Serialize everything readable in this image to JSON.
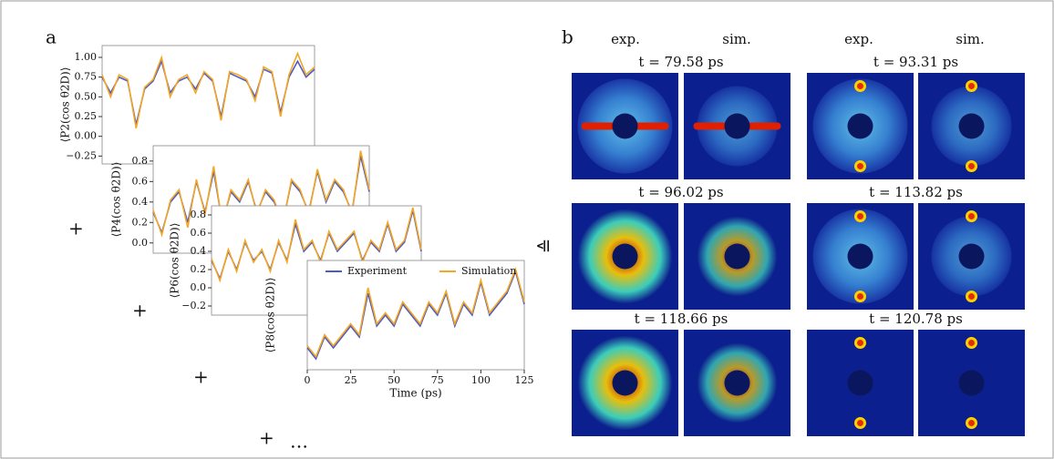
{
  "panel_a": {
    "label": "a",
    "symbols": [
      "+",
      "+",
      "+",
      "+",
      "…"
    ]
  },
  "chart_data": [
    {
      "type": "line",
      "y_label": "⟨P2(cos θ2D)⟩",
      "x": [
        0,
        5,
        10,
        15,
        20,
        25,
        30,
        35,
        40,
        45,
        50,
        55,
        60,
        65,
        70,
        75,
        80,
        85,
        90,
        95,
        100,
        105,
        110,
        115,
        120,
        125
      ],
      "xlim": [
        0,
        125
      ],
      "ylim": [
        -0.35,
        1.15
      ],
      "yticks": [
        {
          "value": -0.25,
          "label": "−0.25"
        },
        {
          "value": 0,
          "label": "0.00"
        },
        {
          "value": 0.25,
          "label": "0.25"
        },
        {
          "value": 0.5,
          "label": "0.50"
        },
        {
          "value": 0.75,
          "label": "0.75"
        },
        {
          "value": 1,
          "label": "1.00"
        }
      ],
      "series": [
        {
          "name": "Experiment",
          "color": "#4b5cc4",
          "values": [
            0.75,
            0.55,
            0.75,
            0.7,
            0.15,
            0.6,
            0.7,
            0.95,
            0.55,
            0.7,
            0.75,
            0.6,
            0.8,
            0.7,
            0.25,
            0.8,
            0.75,
            0.7,
            0.5,
            0.85,
            0.8,
            0.3,
            0.75,
            0.95,
            0.75,
            0.85
          ]
        },
        {
          "name": "Simulation",
          "color": "#f5a623",
          "values": [
            0.78,
            0.5,
            0.78,
            0.72,
            0.1,
            0.62,
            0.72,
            1.0,
            0.5,
            0.72,
            0.78,
            0.55,
            0.82,
            0.72,
            0.2,
            0.82,
            0.78,
            0.72,
            0.45,
            0.88,
            0.82,
            0.25,
            0.78,
            1.05,
            0.78,
            0.88
          ]
        }
      ]
    },
    {
      "type": "line",
      "y_label": "⟨P4(cos θ2D)⟩",
      "x": [
        0,
        5,
        10,
        15,
        20,
        25,
        30,
        35,
        40,
        45,
        50,
        55,
        60,
        65,
        70,
        75,
        80,
        85,
        90,
        95,
        100,
        105,
        110,
        115,
        120,
        125
      ],
      "xlim": [
        0,
        125
      ],
      "ylim": [
        -0.1,
        0.95
      ],
      "yticks": [
        {
          "value": 0,
          "label": "0.0"
        },
        0.2,
        0.4,
        0.6,
        0.8
      ],
      "series": [
        {
          "name": "Experiment",
          "color": "#4b5cc4",
          "values": [
            0.3,
            0.1,
            0.4,
            0.5,
            0.2,
            0.6,
            0.3,
            0.7,
            0.2,
            0.5,
            0.4,
            0.6,
            0.3,
            0.5,
            0.4,
            0.2,
            0.6,
            0.5,
            0.3,
            0.7,
            0.4,
            0.6,
            0.5,
            0.3,
            0.85,
            0.5
          ]
        },
        {
          "name": "Simulation",
          "color": "#f5a623",
          "values": [
            0.32,
            0.08,
            0.42,
            0.52,
            0.15,
            0.62,
            0.28,
            0.75,
            0.18,
            0.52,
            0.42,
            0.62,
            0.28,
            0.52,
            0.42,
            0.18,
            0.62,
            0.52,
            0.28,
            0.72,
            0.42,
            0.62,
            0.52,
            0.28,
            0.9,
            0.52
          ]
        }
      ]
    },
    {
      "type": "line",
      "y_label": "⟨P6(cos θ2D)⟩",
      "x": [
        0,
        5,
        10,
        15,
        20,
        25,
        30,
        35,
        40,
        45,
        50,
        55,
        60,
        65,
        70,
        75,
        80,
        85,
        90,
        95,
        100,
        105,
        110,
        115,
        120,
        125
      ],
      "xlim": [
        0,
        125
      ],
      "ylim": [
        -0.3,
        0.9
      ],
      "yticks": [
        {
          "value": -0.2,
          "label": "−0.2"
        },
        {
          "value": 0,
          "label": "0.0"
        },
        0.2,
        0.4,
        0.6,
        0.8
      ],
      "series": [
        {
          "name": "Experiment",
          "color": "#4b5cc4",
          "values": [
            0.3,
            0.1,
            0.4,
            0.2,
            0.5,
            0.3,
            0.4,
            0.2,
            0.5,
            0.3,
            0.7,
            0.4,
            0.5,
            0.3,
            0.6,
            0.4,
            0.5,
            0.6,
            0.3,
            0.5,
            0.4,
            0.7,
            0.4,
            0.5,
            0.85,
            0.4
          ]
        },
        {
          "name": "Simulation",
          "color": "#f5a623",
          "values": [
            0.32,
            0.08,
            0.42,
            0.18,
            0.52,
            0.28,
            0.42,
            0.18,
            0.52,
            0.28,
            0.75,
            0.42,
            0.52,
            0.28,
            0.62,
            0.42,
            0.52,
            0.62,
            0.28,
            0.52,
            0.42,
            0.72,
            0.42,
            0.52,
            0.88,
            0.42
          ]
        }
      ]
    },
    {
      "type": "line",
      "y_label": "⟨P8(cos θ2D)⟩",
      "x_label": "Time (ps)",
      "legend": "top",
      "x": [
        0,
        5,
        10,
        15,
        20,
        25,
        30,
        35,
        40,
        45,
        50,
        55,
        60,
        65,
        70,
        75,
        80,
        85,
        90,
        95,
        100,
        105,
        110,
        115,
        120,
        125
      ],
      "xlim": [
        0,
        125
      ],
      "ylim": [
        -0.1,
        0.9
      ],
      "xticks": [
        0,
        25,
        50,
        75,
        100,
        125
      ],
      "series": [
        {
          "name": "Experiment",
          "color": "#4b5cc4",
          "values": [
            0.1,
            0.0,
            0.2,
            0.1,
            0.2,
            0.3,
            0.2,
            0.6,
            0.3,
            0.4,
            0.3,
            0.5,
            0.4,
            0.3,
            0.5,
            0.4,
            0.6,
            0.3,
            0.5,
            0.4,
            0.7,
            0.4,
            0.5,
            0.6,
            0.8,
            0.5
          ]
        },
        {
          "name": "Simulation",
          "color": "#f5a623",
          "values": [
            0.12,
            0.02,
            0.22,
            0.12,
            0.22,
            0.32,
            0.22,
            0.65,
            0.32,
            0.42,
            0.32,
            0.52,
            0.42,
            0.32,
            0.52,
            0.42,
            0.62,
            0.32,
            0.52,
            0.42,
            0.72,
            0.42,
            0.52,
            0.62,
            0.82,
            0.52
          ]
        }
      ]
    }
  ],
  "panel_b": {
    "label": "b",
    "equiv": "≙",
    "headers": [
      "exp.",
      "sim.",
      "exp.",
      "sim."
    ],
    "times": [
      "t = 79.58 ps",
      "t = 93.31 ps",
      "t = 96.02 ps",
      "t = 113.82 ps",
      "t = 118.66 ps",
      "t = 120.78 ps"
    ]
  }
}
